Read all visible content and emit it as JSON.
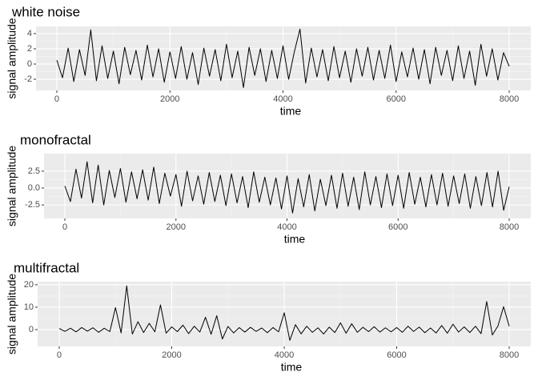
{
  "chart_data": [
    {
      "type": "line",
      "title": "white noise",
      "x_label": "time",
      "y_label": "signal amplitude",
      "color": "#000000",
      "grid": true,
      "xlim": [
        -368,
        8382
      ],
      "ylim": [
        -3.47,
        4.95
      ],
      "xticks": [
        0,
        2000,
        4000,
        6000,
        8000
      ],
      "yticks": [
        -2,
        0,
        2,
        4
      ],
      "x": [
        0,
        100,
        200,
        300,
        400,
        500,
        600,
        700,
        800,
        900,
        1000,
        1100,
        1200,
        1300,
        1400,
        1500,
        1600,
        1700,
        1800,
        1900,
        2000,
        2100,
        2200,
        2300,
        2400,
        2500,
        2600,
        2700,
        2800,
        2900,
        3000,
        3100,
        3200,
        3300,
        3400,
        3500,
        3600,
        3700,
        3800,
        3900,
        4000,
        4100,
        4200,
        4300,
        4400,
        4500,
        4600,
        4700,
        4800,
        4900,
        5000,
        5100,
        5200,
        5300,
        5400,
        5500,
        5600,
        5700,
        5800,
        5900,
        6000,
        6100,
        6200,
        6300,
        6400,
        6500,
        6600,
        6700,
        6800,
        6900,
        7000,
        7100,
        7200,
        7300,
        7400,
        7500,
        7600,
        7700,
        7800,
        7900,
        8000
      ],
      "values": [
        0.5,
        -1.8,
        2.1,
        -2.3,
        1.9,
        -1.5,
        4.5,
        -2.2,
        2.4,
        -1.9,
        1.7,
        -2.6,
        2.2,
        -1.4,
        1.8,
        -2.1,
        2.5,
        -1.7,
        2.0,
        -2.4,
        1.6,
        -1.9,
        2.3,
        -2.0,
        1.5,
        -2.7,
        2.1,
        -1.6,
        1.9,
        -2.2,
        2.6,
        -1.8,
        1.7,
        -3.1,
        2.2,
        -1.5,
        2.0,
        -2.3,
        1.8,
        -1.9,
        2.4,
        -2.0,
        1.6,
        4.6,
        -2.5,
        2.1,
        -1.7,
        1.9,
        -2.2,
        2.3,
        -1.8,
        1.7,
        -2.4,
        2.0,
        -1.6,
        2.2,
        -2.1,
        1.8,
        -1.9,
        2.5,
        -2.3,
        1.6,
        -1.7,
        2.1,
        -2.0,
        1.9,
        -2.6,
        2.2,
        -1.5,
        1.8,
        -2.2,
        2.4,
        -1.9,
        1.7,
        -2.8,
        2.6,
        -1.6,
        2.0,
        -2.1,
        1.5,
        -0.3
      ]
    },
    {
      "type": "line",
      "title": "monofractal",
      "x_label": "time",
      "y_label": "signal amplitude",
      "color": "#000000",
      "grid": true,
      "xlim": [
        -375,
        8389
      ],
      "ylim": [
        -4.5,
        5.1
      ],
      "xticks": [
        0,
        2000,
        4000,
        6000,
        8000
      ],
      "yticks": [
        -2.5,
        {
          "value": 0,
          "label": "0.0"
        },
        2.5
      ],
      "x": [
        0,
        100,
        200,
        300,
        400,
        500,
        600,
        700,
        800,
        900,
        1000,
        1100,
        1200,
        1300,
        1400,
        1500,
        1600,
        1700,
        1800,
        1900,
        2000,
        2100,
        2200,
        2300,
        2400,
        2500,
        2600,
        2700,
        2800,
        2900,
        3000,
        3100,
        3200,
        3300,
        3400,
        3500,
        3600,
        3700,
        3800,
        3900,
        4000,
        4100,
        4200,
        4300,
        4400,
        4500,
        4600,
        4700,
        4800,
        4900,
        5000,
        5100,
        5200,
        5300,
        5400,
        5500,
        5600,
        5700,
        5800,
        5900,
        6000,
        6100,
        6200,
        6300,
        6400,
        6500,
        6600,
        6700,
        6800,
        6900,
        7000,
        7100,
        7200,
        7300,
        7400,
        7500,
        7600,
        7700,
        7800,
        7900,
        8000
      ],
      "values": [
        0.3,
        -2.0,
        2.8,
        -1.5,
        3.9,
        -2.2,
        3.4,
        -2.5,
        2.6,
        -1.4,
        2.9,
        -2.1,
        2.4,
        -1.6,
        2.7,
        -1.8,
        3.1,
        -2.3,
        2.2,
        -1.2,
        2.0,
        -2.7,
        2.5,
        -1.9,
        1.8,
        -2.4,
        2.3,
        -2.0,
        1.9,
        -2.6,
        2.1,
        -2.2,
        1.7,
        -2.9,
        2.4,
        -2.1,
        1.6,
        -2.5,
        1.5,
        -3.1,
        1.8,
        -3.7,
        1.4,
        -2.8,
        2.0,
        -3.4,
        1.3,
        -2.6,
        1.9,
        -3.0,
        2.2,
        -2.7,
        1.6,
        -3.2,
        2.4,
        -2.5,
        1.7,
        -2.9,
        2.1,
        -2.6,
        1.9,
        -3.0,
        2.3,
        -2.4,
        1.6,
        -2.8,
        2.0,
        -2.5,
        2.2,
        -2.7,
        1.8,
        -2.3,
        2.1,
        -3.0,
        1.7,
        -2.6,
        2.3,
        -2.8,
        2.5,
        -3.3,
        0.2
      ]
    },
    {
      "type": "line",
      "title": "multifractal",
      "x_label": "time",
      "y_label": "signal amplitude",
      "color": "#000000",
      "grid": true,
      "xlim": [
        -384,
        8384
      ],
      "ylim": [
        -7.5,
        21.4
      ],
      "xticks": [
        0,
        2000,
        4000,
        6000,
        8000
      ],
      "yticks": [
        0,
        10,
        20
      ],
      "x": [
        0,
        100,
        200,
        300,
        400,
        500,
        600,
        700,
        800,
        900,
        1000,
        1100,
        1200,
        1300,
        1400,
        1500,
        1600,
        1700,
        1800,
        1900,
        2000,
        2100,
        2200,
        2300,
        2400,
        2500,
        2600,
        2700,
        2800,
        2900,
        3000,
        3100,
        3200,
        3300,
        3400,
        3500,
        3600,
        3700,
        3800,
        3900,
        4000,
        4100,
        4200,
        4300,
        4400,
        4500,
        4600,
        4700,
        4800,
        4900,
        5000,
        5100,
        5200,
        5300,
        5400,
        5500,
        5600,
        5700,
        5800,
        5900,
        6000,
        6100,
        6200,
        6300,
        6400,
        6500,
        6600,
        6700,
        6800,
        6900,
        7000,
        7100,
        7200,
        7300,
        7400,
        7500,
        7600,
        7700,
        7800,
        7900,
        8000
      ],
      "values": [
        0.5,
        -0.8,
        0.6,
        -1.0,
        0.9,
        -0.7,
        0.8,
        -1.2,
        0.6,
        -0.9,
        9.8,
        -1.5,
        19.5,
        -2.0,
        3.5,
        -1.3,
        2.8,
        -1.0,
        11.0,
        -1.6,
        1.2,
        -0.9,
        2.0,
        -1.8,
        1.5,
        -1.1,
        5.5,
        -2.1,
        6.2,
        -4.2,
        1.4,
        -1.5,
        0.9,
        -1.1,
        1.0,
        -0.8,
        0.7,
        -1.4,
        0.9,
        -1.0,
        7.5,
        -4.8,
        2.2,
        -1.9,
        1.5,
        -1.2,
        0.8,
        -2.0,
        1.1,
        -1.3,
        3.0,
        -1.6,
        2.6,
        -1.2,
        1.0,
        -0.9,
        1.3,
        -1.1,
        0.8,
        -1.0,
        0.9,
        -1.2,
        1.5,
        -0.8,
        1.1,
        -1.4,
        0.7,
        -1.5,
        1.8,
        -1.6,
        2.4,
        -1.1,
        1.2,
        -1.3,
        1.5,
        -1.8,
        12.5,
        -2.4,
        1.6,
        10.2,
        1.5
      ]
    }
  ]
}
